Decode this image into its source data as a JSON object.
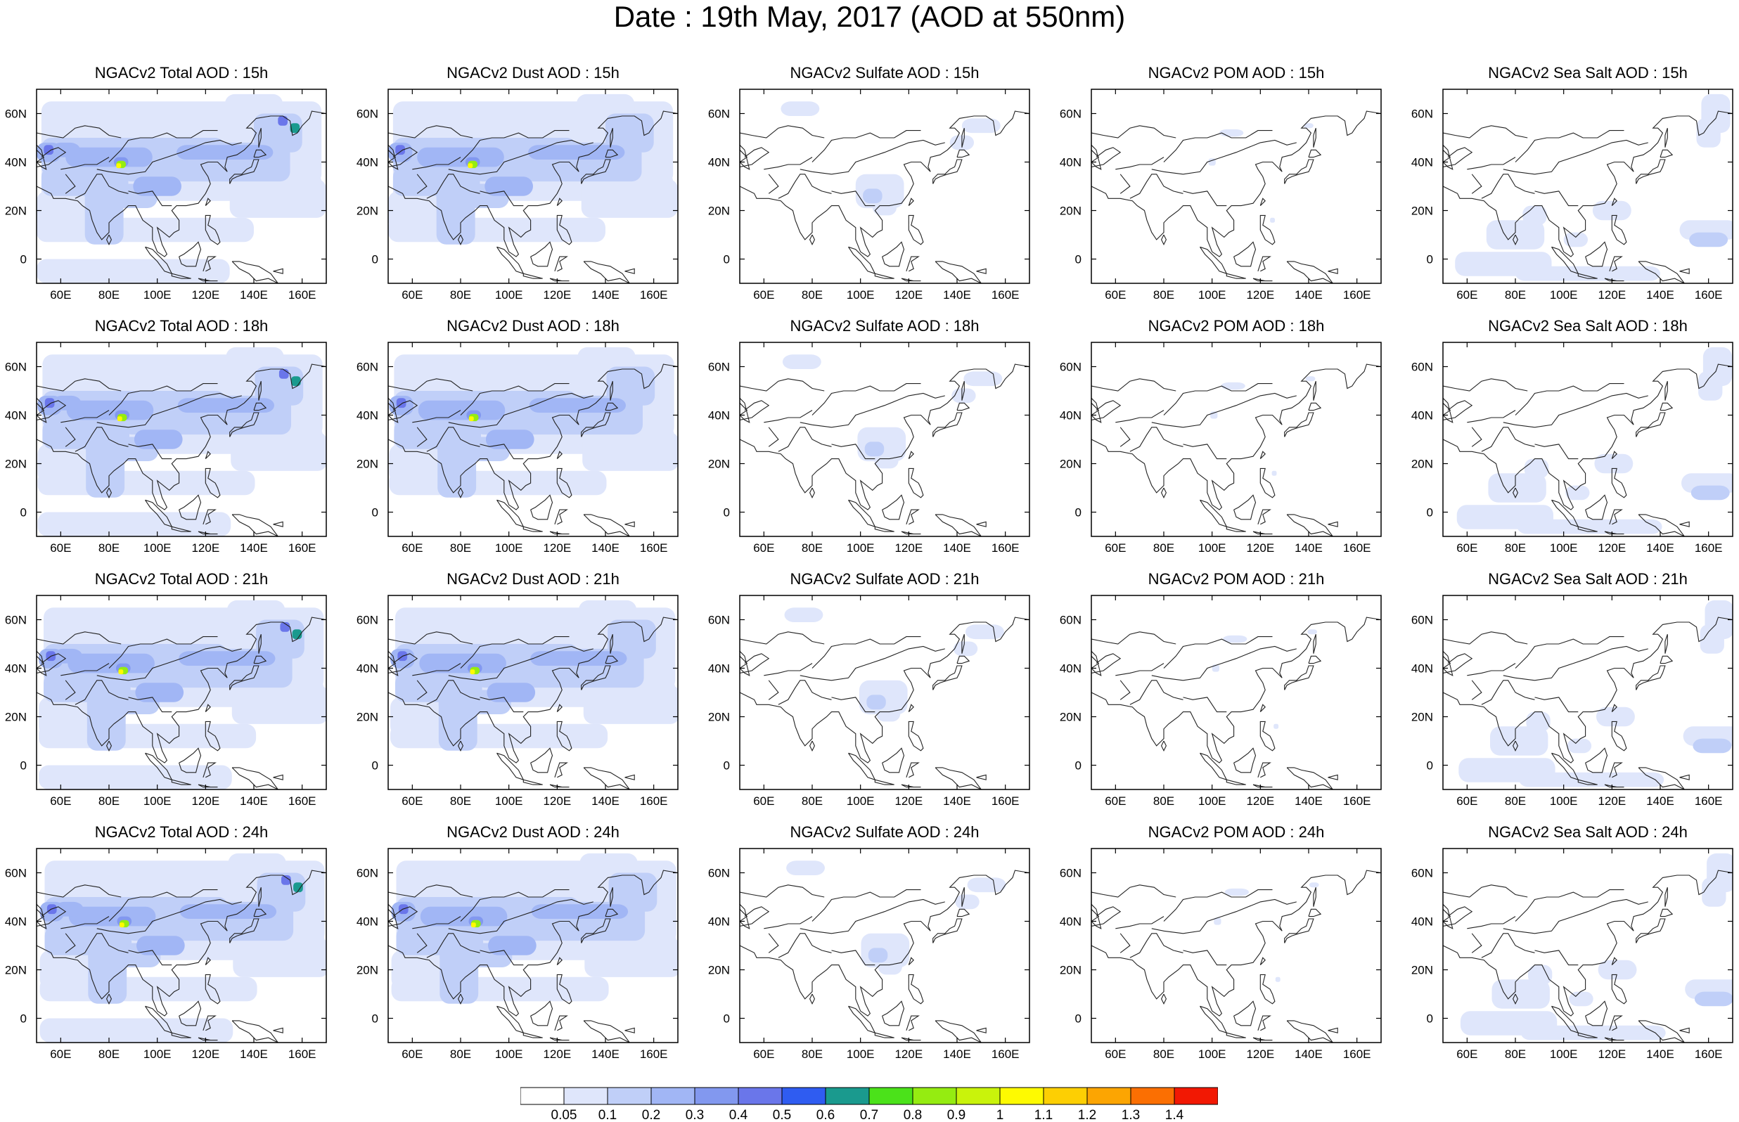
{
  "title": "Date : 19th May, 2017 (AOD at 550nm)",
  "columns": [
    "total",
    "dust",
    "sulfate",
    "pom",
    "seasalt"
  ],
  "panel_titles": [
    [
      "NGACv2 Total AOD : 15h",
      "NGACv2 Dust AOD : 15h",
      "NGACv2 Sulfate AOD : 15h",
      "NGACv2 POM AOD : 15h",
      "NGACv2 Sea Salt AOD : 15h"
    ],
    [
      "NGACv2 Total AOD : 18h",
      "NGACv2 Dust AOD : 18h",
      "NGACv2 Sulfate AOD : 18h",
      "NGACv2 POM AOD : 18h",
      "NGACv2 Sea Salt AOD : 18h"
    ],
    [
      "NGACv2 Total AOD : 21h",
      "NGACv2 Dust AOD : 21h",
      "NGACv2 Sulfate AOD : 21h",
      "NGACv2 POM AOD : 21h",
      "NGACv2 Sea Salt AOD : 21h"
    ],
    [
      "NGACv2 Total AOD : 24h",
      "NGACv2 Dust AOD : 24h",
      "NGACv2 Sulfate AOD : 24h",
      "NGACv2 POM AOD : 24h",
      "NGACv2 Sea Salt  AOD : 24h"
    ]
  ],
  "map_extent": {
    "lon_min": 50,
    "lon_max": 170,
    "lat_min": -10,
    "lat_max": 70
  },
  "x_ticks": [
    "60E",
    "80E",
    "100E",
    "120E",
    "140E",
    "160E"
  ],
  "x_tick_values": [
    60,
    80,
    100,
    120,
    140,
    160
  ],
  "y_ticks": [
    "60N",
    "40N",
    "20N",
    "0"
  ],
  "y_tick_values": [
    60,
    40,
    20,
    0
  ],
  "colorbar": {
    "levels": [
      "0.05",
      "0.1",
      "0.2",
      "0.3",
      "0.4",
      "0.5",
      "0.6",
      "0.7",
      "0.8",
      "0.9",
      "1",
      "1.1",
      "1.2",
      "1.3",
      "1.4"
    ],
    "colors": [
      "#ffffff",
      "#dfe6fb",
      "#c0cff8",
      "#a1b6f5",
      "#8298ef",
      "#6a76ea",
      "#2f5cf1",
      "#1a9a8e",
      "#4be21a",
      "#95ec11",
      "#c9f30b",
      "#fefa01",
      "#fdcf03",
      "#fca502",
      "#fb6f02",
      "#f21803"
    ]
  },
  "colors": {
    "coast": "#222222",
    "frame": "#000000"
  }
}
